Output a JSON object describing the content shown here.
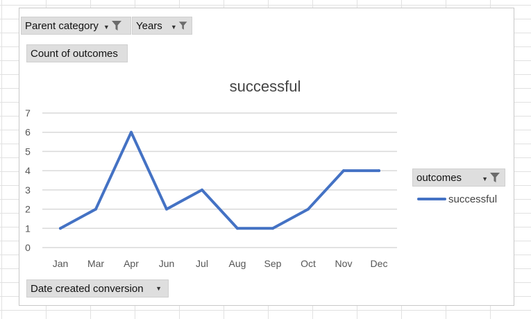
{
  "pivot_fields": {
    "filters": [
      {
        "label": "Parent category",
        "icon": "filter-icon"
      },
      {
        "label": "Years",
        "icon": "filter-icon"
      }
    ],
    "values": {
      "label": "Count of outcomes"
    },
    "axis": {
      "label": "Date created conversion",
      "icon": "dropdown-arrow-icon"
    },
    "legend": {
      "label": "outcomes",
      "icon": "filter-icon"
    }
  },
  "chart_data": {
    "type": "line",
    "title": "successful",
    "categories": [
      "Jan",
      "Mar",
      "Apr",
      "Jun",
      "Jul",
      "Aug",
      "Sep",
      "Oct",
      "Nov",
      "Dec"
    ],
    "series": [
      {
        "name": "successful",
        "values": [
          1,
          2,
          6,
          2,
          3,
          1,
          1,
          2,
          4,
          4
        ],
        "color": "#4472c4"
      }
    ],
    "ylim": [
      0,
      7
    ],
    "yticks": [
      0,
      1,
      2,
      3,
      4,
      5,
      6,
      7
    ],
    "grid": true,
    "legend_position": "right"
  },
  "colors": {
    "gridline": "#d9d9d9",
    "button_bg": "#dedede"
  }
}
